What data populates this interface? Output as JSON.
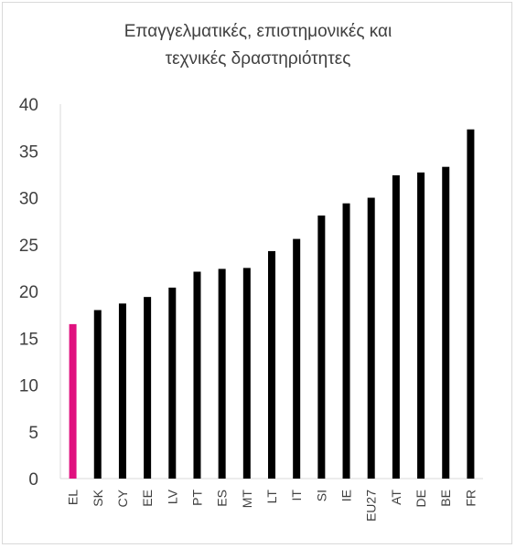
{
  "chart_data": {
    "type": "bar",
    "title_lines": [
      "Επαγγελματικές, επιστημονικές και",
      "τεχνικές δραστηριότητες"
    ],
    "categories": [
      "EL",
      "SK",
      "CY",
      "EE",
      "LV",
      "PT",
      "ES",
      "MT",
      "LT",
      "IT",
      "SI",
      "IE",
      "EU27",
      "AT",
      "DE",
      "BE",
      "FR"
    ],
    "values": [
      16.5,
      18.0,
      18.7,
      19.4,
      20.4,
      22.1,
      22.4,
      22.5,
      24.3,
      25.6,
      28.1,
      29.4,
      30.0,
      32.4,
      32.7,
      33.3,
      37.3
    ],
    "colors": [
      "#e0117f",
      "#000000",
      "#000000",
      "#000000",
      "#000000",
      "#000000",
      "#000000",
      "#000000",
      "#000000",
      "#000000",
      "#000000",
      "#000000",
      "#000000",
      "#000000",
      "#000000",
      "#000000",
      "#000000"
    ],
    "ylim": [
      0,
      40
    ],
    "yticks": [
      0,
      5,
      10,
      15,
      20,
      25,
      30,
      35,
      40
    ],
    "grid": false,
    "legend": "none",
    "xlabel": "",
    "ylabel": ""
  }
}
